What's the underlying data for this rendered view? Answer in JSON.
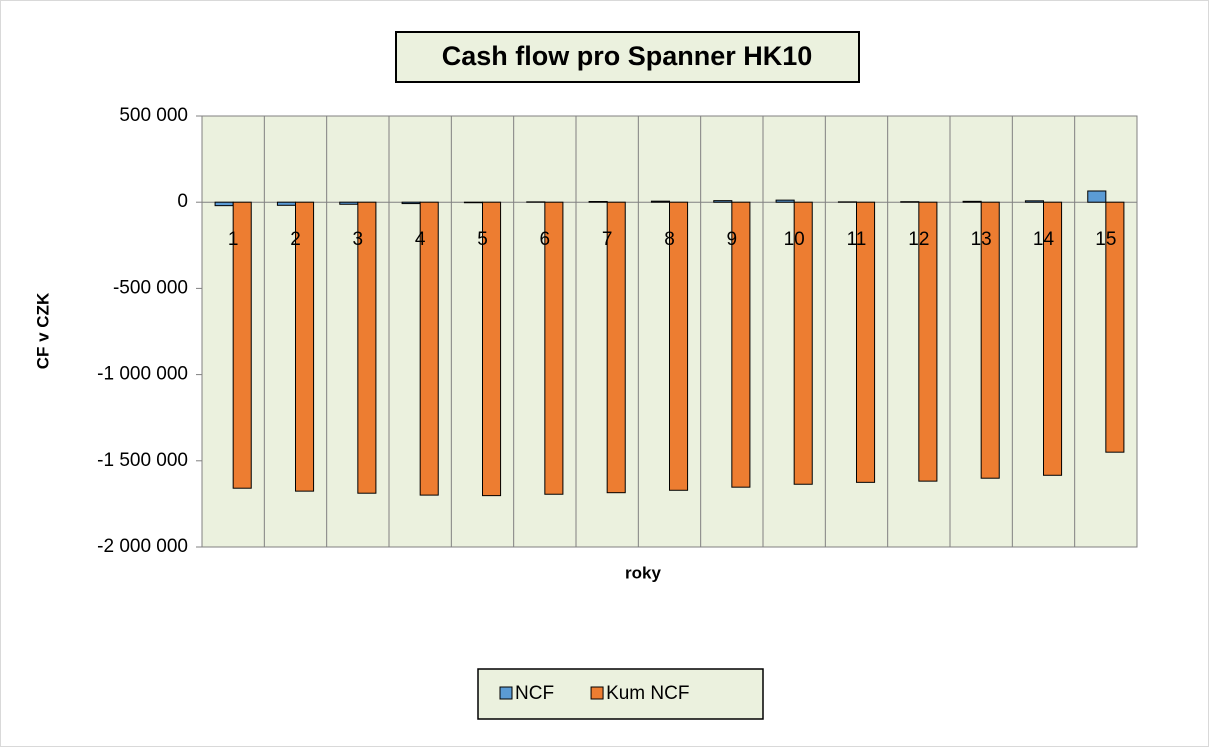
{
  "chart_data": {
    "type": "bar",
    "title": "Cash flow pro Spanner HK10",
    "x_label": "roky",
    "y_label": "CF v CZK",
    "categories": [
      "1",
      "2",
      "3",
      "4",
      "5",
      "6",
      "7",
      "8",
      "9",
      "10",
      "11",
      "12",
      "13",
      "14",
      "15"
    ],
    "series": [
      {
        "name": "NCF",
        "color": "#5b9bd5",
        "values": [
          -20000,
          -18000,
          -12000,
          -8000,
          -3000,
          2000,
          4000,
          6000,
          9000,
          12000,
          2000,
          3000,
          5000,
          8000,
          65000
        ]
      },
      {
        "name": "Kum NCF",
        "color": "#ed7d31",
        "values": [
          -1659000,
          -1676000,
          -1688000,
          -1699000,
          -1702000,
          -1694000,
          -1685000,
          -1671000,
          -1653000,
          -1636000,
          -1625000,
          -1618000,
          -1601000,
          -1584000,
          -1450000
        ]
      }
    ],
    "ylim": [
      -2000000,
      500000
    ],
    "yticks": [
      {
        "value": 500000,
        "label": "500 000"
      },
      0,
      {
        "value": -500000,
        "label": "-500 000"
      },
      {
        "value": -1000000,
        "label": "-1 000 000"
      },
      {
        "value": -1500000,
        "label": "-1 500 000"
      },
      {
        "value": -2000000,
        "label": "-2 000 000"
      }
    ],
    "plot_background": "#ebf1de"
  }
}
